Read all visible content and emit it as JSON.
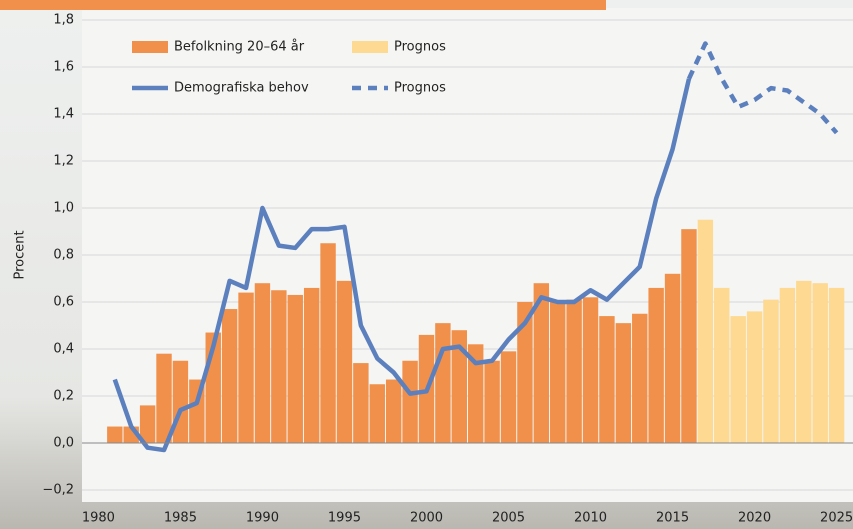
{
  "chart_data": {
    "type": "bar",
    "y_label": "Procent",
    "x": [
      1981,
      1982,
      1983,
      1984,
      1985,
      1986,
      1987,
      1988,
      1989,
      1990,
      1991,
      1992,
      1993,
      1994,
      1995,
      1996,
      1997,
      1998,
      1999,
      2000,
      2001,
      2002,
      2003,
      2004,
      2005,
      2006,
      2007,
      2008,
      2009,
      2010,
      2011,
      2012,
      2013,
      2014,
      2015,
      2016,
      2017,
      2018,
      2019,
      2020,
      2021,
      2022,
      2023,
      2024,
      2025
    ],
    "series": [
      {
        "name": "Befolkning 20–64 år",
        "type": "bar",
        "color": "#f0904a",
        "values": [
          0.07,
          0.07,
          0.16,
          0.38,
          0.35,
          0.27,
          0.47,
          0.57,
          0.64,
          0.68,
          0.65,
          0.63,
          0.66,
          0.85,
          0.69,
          0.34,
          0.25,
          0.27,
          0.35,
          0.46,
          0.51,
          0.48,
          0.42,
          0.35,
          0.39,
          0.6,
          0.68,
          0.6,
          0.61,
          0.62,
          0.54,
          0.51,
          0.55,
          0.66,
          0.72,
          0.91,
          null,
          null,
          null,
          null,
          null,
          null,
          null,
          null,
          null
        ]
      },
      {
        "name": "Prognos",
        "type": "bar",
        "color": "#fdd991",
        "values": [
          null,
          null,
          null,
          null,
          null,
          null,
          null,
          null,
          null,
          null,
          null,
          null,
          null,
          null,
          null,
          null,
          null,
          null,
          null,
          null,
          null,
          null,
          null,
          null,
          null,
          null,
          null,
          null,
          null,
          null,
          null,
          null,
          null,
          null,
          null,
          null,
          0.95,
          0.66,
          0.54,
          0.56,
          0.61,
          0.66,
          0.69,
          0.68,
          0.66
        ]
      },
      {
        "name": "Demografiska behov",
        "type": "line",
        "dashed": false,
        "color": "#5b80bd",
        "values": [
          0.27,
          0.07,
          -0.02,
          -0.03,
          0.14,
          0.17,
          0.41,
          0.69,
          0.66,
          1.0,
          0.84,
          0.83,
          0.91,
          0.91,
          0.92,
          0.5,
          0.36,
          0.3,
          0.21,
          0.22,
          0.4,
          0.41,
          0.34,
          0.35,
          0.44,
          0.51,
          0.62,
          0.6,
          0.6,
          0.65,
          0.61,
          0.68,
          0.75,
          1.04,
          1.25,
          1.55,
          null,
          null,
          null,
          null,
          null,
          null,
          null,
          null,
          null
        ]
      },
      {
        "name": "Prognos",
        "type": "line",
        "dashed": true,
        "color": "#5b80bd",
        "values": [
          null,
          null,
          null,
          null,
          null,
          null,
          null,
          null,
          null,
          null,
          null,
          null,
          null,
          null,
          null,
          null,
          null,
          null,
          null,
          null,
          null,
          null,
          null,
          null,
          null,
          null,
          null,
          null,
          null,
          null,
          null,
          null,
          null,
          null,
          null,
          1.55,
          1.7,
          1.55,
          1.43,
          1.46,
          1.51,
          1.5,
          1.45,
          1.4,
          1.32
        ]
      }
    ],
    "xlim": [
      1979,
      2026
    ],
    "xticks": [
      1980,
      1985,
      1990,
      1995,
      2000,
      2005,
      2010,
      2015,
      2020,
      2025
    ],
    "ylim": [
      -0.25,
      1.8
    ],
    "yticks": [
      {
        "value": -0.2,
        "label": "−0,2"
      },
      {
        "value": 0,
        "label": "0,0"
      },
      {
        "value": 0.2,
        "label": "0,2"
      },
      {
        "value": 0.4,
        "label": "0,4"
      },
      {
        "value": 0.6,
        "label": "0,6"
      },
      {
        "value": 0.8,
        "label": "0,8"
      },
      {
        "value": 1.0,
        "label": "1,0"
      },
      {
        "value": 1.2,
        "label": "1,2"
      },
      {
        "value": 1.4,
        "label": "1,4"
      },
      {
        "value": 1.6,
        "label": "1,6"
      },
      {
        "value": 1.8,
        "label": "1,8"
      }
    ],
    "grid": true
  }
}
